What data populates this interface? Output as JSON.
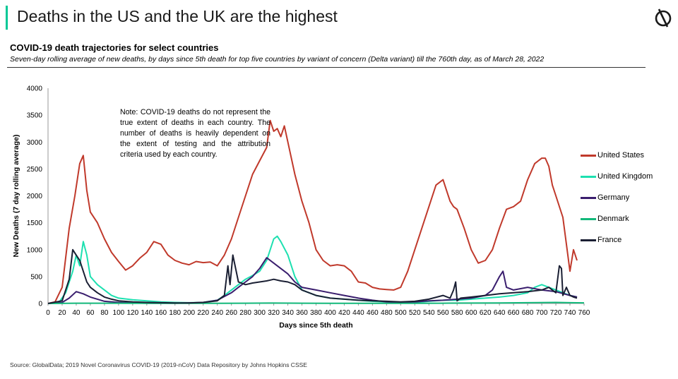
{
  "page": {
    "title": "Deaths in the US and the UK are the highest",
    "logo_icon": "globaldata-logo-icon",
    "accent_color": "#00c896",
    "source": "Source: GlobalData; 2019 Novel Coronavirus COVID-19 (2019-nCoV) Data Repository by Johns Hopkins CSSE"
  },
  "chart_data": {
    "type": "line",
    "title": "COVID-19 death trajectories for select countries",
    "subtitle": "Seven-day rolling average of new deaths, by days since 5th death for top five countries by variant of concern (Delta variant) till the 760th day, as of March 28, 2022",
    "xlabel": "Days since 5th death",
    "ylabel": "New Deaths (7 day rolling average)",
    "xlim": [
      0,
      760
    ],
    "ylim": [
      0,
      4000
    ],
    "xticks": [
      0,
      20,
      40,
      60,
      80,
      100,
      120,
      140,
      160,
      180,
      200,
      220,
      240,
      260,
      280,
      300,
      320,
      340,
      360,
      380,
      400,
      420,
      440,
      460,
      480,
      500,
      520,
      540,
      560,
      580,
      600,
      620,
      640,
      660,
      680,
      700,
      720,
      740,
      760
    ],
    "yticks": [
      0,
      500,
      1000,
      1500,
      2000,
      2500,
      3000,
      3500,
      4000
    ],
    "grid": false,
    "legend_position": "right",
    "note": "Note: COVID-19 deaths do not represent the true extent of deaths in each country. The number of deaths is heavily dependent on the extent of testing and the attribution criteria used by each country.",
    "series": [
      {
        "name": "United States",
        "color": "#c0392b",
        "x": [
          0,
          10,
          20,
          30,
          38,
          45,
          50,
          55,
          60,
          70,
          80,
          90,
          100,
          110,
          120,
          130,
          140,
          150,
          160,
          170,
          180,
          190,
          200,
          210,
          220,
          230,
          240,
          250,
          260,
          270,
          280,
          290,
          300,
          310,
          315,
          320,
          325,
          330,
          335,
          340,
          350,
          360,
          370,
          380,
          390,
          400,
          410,
          420,
          430,
          440,
          450,
          460,
          470,
          480,
          490,
          500,
          510,
          520,
          530,
          540,
          550,
          560,
          565,
          570,
          575,
          580,
          590,
          600,
          610,
          620,
          630,
          640,
          650,
          660,
          670,
          680,
          690,
          700,
          705,
          710,
          715,
          720,
          730,
          735,
          740,
          745,
          750
        ],
        "y": [
          0,
          30,
          300,
          1400,
          2000,
          2600,
          2750,
          2100,
          1700,
          1500,
          1200,
          950,
          780,
          620,
          700,
          840,
          950,
          1150,
          1100,
          900,
          800,
          750,
          720,
          780,
          760,
          770,
          700,
          900,
          1200,
          1600,
          2000,
          2400,
          2650,
          2900,
          3400,
          3200,
          3250,
          3100,
          3300,
          3000,
          2400,
          1900,
          1500,
          1000,
          800,
          700,
          720,
          700,
          600,
          400,
          380,
          300,
          270,
          260,
          250,
          300,
          600,
          1000,
          1400,
          1800,
          2200,
          2300,
          2100,
          1900,
          1800,
          1750,
          1400,
          1000,
          750,
          800,
          1000,
          1400,
          1750,
          1800,
          1900,
          2300,
          2600,
          2700,
          2700,
          2550,
          2200,
          2000,
          1600,
          1100,
          600,
          1000,
          800
        ]
      },
      {
        "name": "United Kingdom",
        "color": "#1de0b0",
        "x": [
          0,
          15,
          25,
          35,
          40,
          45,
          50,
          55,
          60,
          70,
          80,
          90,
          100,
          120,
          140,
          160,
          180,
          200,
          220,
          240,
          250,
          260,
          270,
          280,
          290,
          300,
          310,
          315,
          320,
          325,
          330,
          340,
          350,
          360,
          380,
          400,
          420,
          440,
          460,
          480,
          500,
          520,
          540,
          560,
          580,
          600,
          620,
          640,
          660,
          680,
          690,
          700,
          720,
          740,
          750
        ],
        "y": [
          0,
          10,
          200,
          600,
          900,
          700,
          1150,
          900,
          500,
          350,
          250,
          150,
          100,
          70,
          50,
          30,
          20,
          15,
          20,
          60,
          150,
          250,
          350,
          450,
          520,
          600,
          800,
          1000,
          1200,
          1250,
          1150,
          900,
          500,
          250,
          150,
          100,
          80,
          60,
          40,
          30,
          20,
          20,
          40,
          60,
          60,
          80,
          100,
          120,
          150,
          200,
          300,
          350,
          250,
          150,
          120
        ]
      },
      {
        "name": "Germany",
        "color": "#3a1e6e",
        "x": [
          0,
          20,
          30,
          40,
          50,
          60,
          70,
          80,
          100,
          120,
          140,
          160,
          180,
          200,
          220,
          240,
          260,
          270,
          280,
          290,
          300,
          310,
          320,
          330,
          340,
          350,
          360,
          380,
          400,
          420,
          440,
          460,
          480,
          500,
          520,
          540,
          560,
          580,
          600,
          620,
          630,
          640,
          645,
          650,
          660,
          680,
          700,
          720,
          740,
          750
        ],
        "y": [
          0,
          20,
          100,
          220,
          180,
          120,
          80,
          40,
          20,
          10,
          5,
          5,
          5,
          10,
          20,
          60,
          200,
          300,
          400,
          500,
          650,
          850,
          750,
          650,
          550,
          400,
          300,
          250,
          200,
          150,
          100,
          60,
          30,
          20,
          30,
          50,
          60,
          80,
          100,
          150,
          250,
          500,
          600,
          300,
          250,
          300,
          250,
          220,
          150,
          120
        ]
      },
      {
        "name": "Denmark",
        "color": "#12b87a",
        "x": [
          0,
          40,
          80,
          120,
          160,
          200,
          240,
          280,
          320,
          360,
          400,
          440,
          480,
          520,
          560,
          600,
          640,
          680,
          720,
          740,
          760
        ],
        "y": [
          0,
          5,
          5,
          3,
          2,
          2,
          3,
          5,
          8,
          5,
          4,
          3,
          3,
          3,
          5,
          8,
          10,
          15,
          20,
          15,
          12
        ]
      },
      {
        "name": "France",
        "color": "#1a1f33",
        "x": [
          0,
          20,
          30,
          35,
          40,
          45,
          50,
          55,
          60,
          70,
          80,
          90,
          100,
          120,
          140,
          160,
          180,
          200,
          220,
          240,
          250,
          255,
          258,
          262,
          270,
          280,
          290,
          300,
          310,
          320,
          330,
          340,
          350,
          360,
          380,
          400,
          420,
          440,
          460,
          480,
          500,
          520,
          540,
          560,
          570,
          575,
          578,
          580,
          585,
          600,
          620,
          640,
          660,
          680,
          700,
          710,
          720,
          725,
          728,
          730,
          735,
          740,
          745,
          750
        ],
        "y": [
          0,
          50,
          450,
          1000,
          900,
          800,
          600,
          400,
          300,
          200,
          120,
          80,
          50,
          30,
          20,
          15,
          10,
          10,
          20,
          50,
          150,
          700,
          350,
          900,
          400,
          350,
          380,
          400,
          420,
          450,
          420,
          400,
          350,
          250,
          150,
          100,
          80,
          60,
          50,
          40,
          30,
          40,
          80,
          150,
          100,
          250,
          400,
          50,
          100,
          120,
          150,
          180,
          200,
          220,
          250,
          300,
          200,
          700,
          650,
          150,
          300,
          150,
          120,
          100
        ]
      }
    ]
  }
}
